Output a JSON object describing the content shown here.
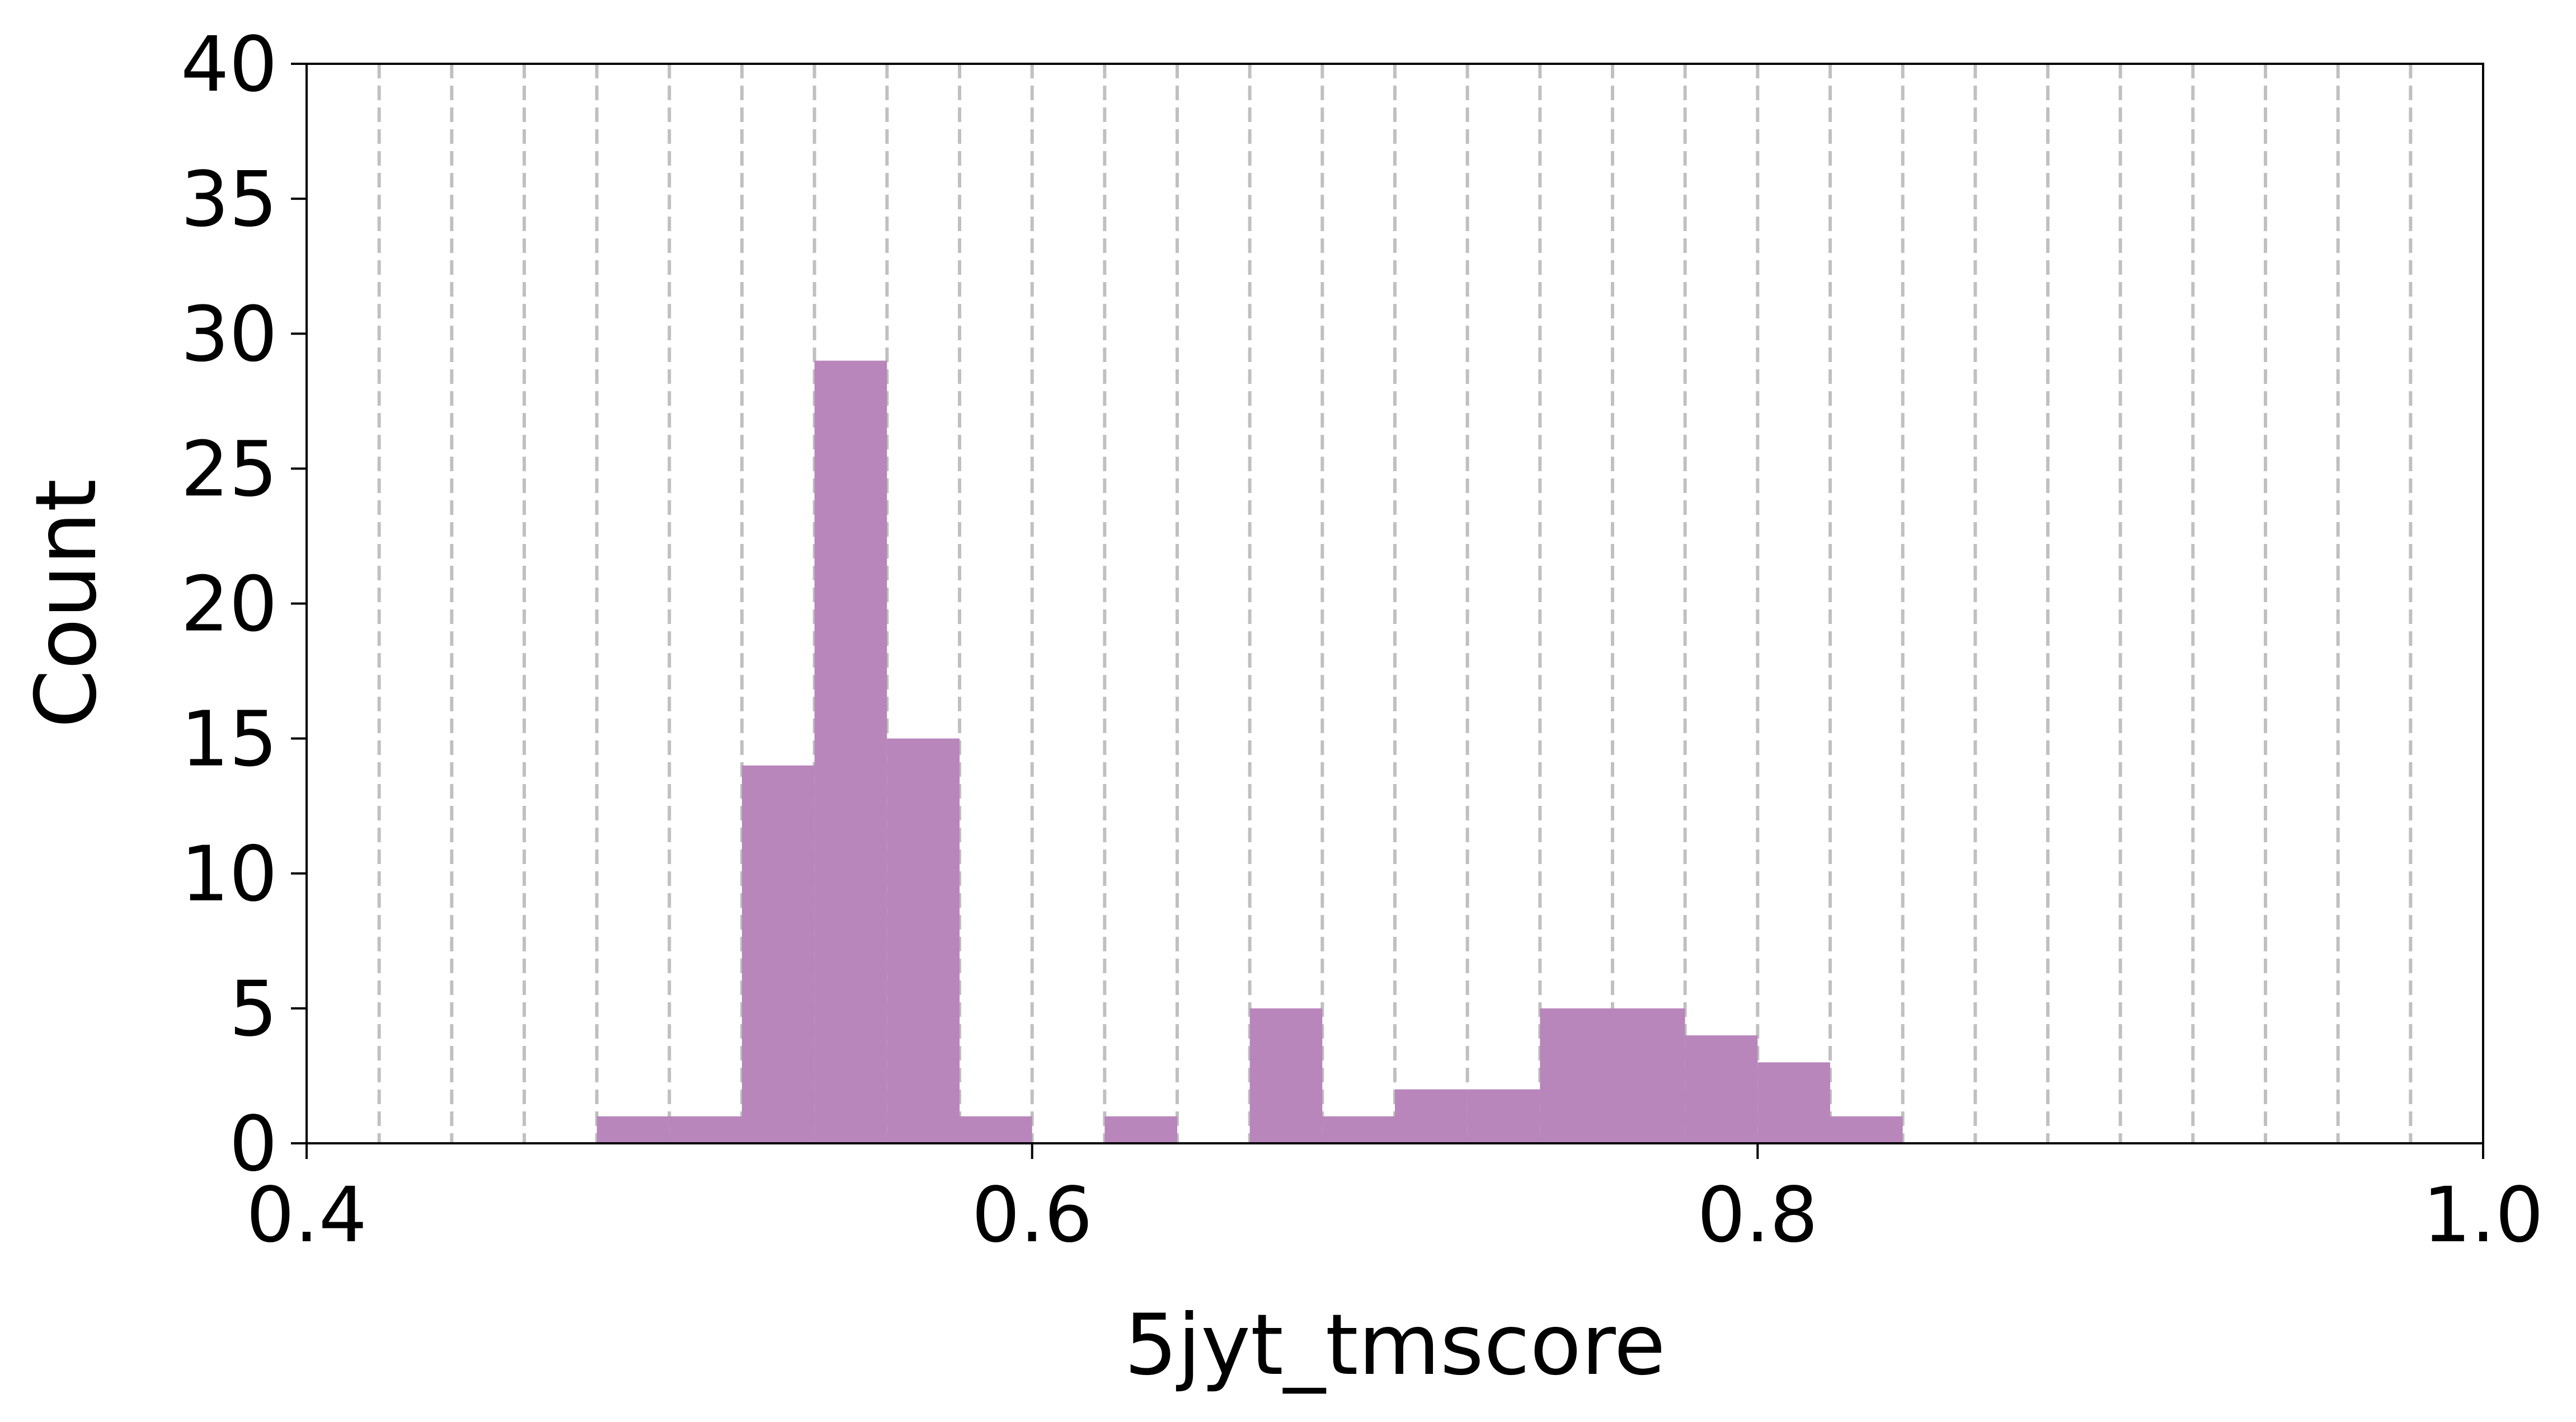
{
  "chart_data": {
    "type": "bar",
    "xlabel": "5jyt_tmscore",
    "ylabel": "Count",
    "xlim": [
      0.4,
      1.0
    ],
    "ylim": [
      0,
      40
    ],
    "bin_width": 0.02,
    "x_ticks": [
      {
        "value": 0.4,
        "label": "0.4"
      },
      {
        "value": 0.6,
        "label": "0.6"
      },
      {
        "value": 0.8,
        "label": "0.8"
      },
      {
        "value": 1.0,
        "label": "1.0"
      }
    ],
    "y_ticks": [
      {
        "value": 0,
        "label": "0"
      },
      {
        "value": 5,
        "label": "5"
      },
      {
        "value": 10,
        "label": "10"
      },
      {
        "value": 15,
        "label": "15"
      },
      {
        "value": 20,
        "label": "20"
      },
      {
        "value": 25,
        "label": "25"
      },
      {
        "value": 30,
        "label": "30"
      },
      {
        "value": 35,
        "label": "35"
      },
      {
        "value": 40,
        "label": "40"
      }
    ],
    "bins": [
      {
        "start": 0.48,
        "count": 1
      },
      {
        "start": 0.5,
        "count": 1
      },
      {
        "start": 0.52,
        "count": 14
      },
      {
        "start": 0.54,
        "count": 29
      },
      {
        "start": 0.56,
        "count": 15
      },
      {
        "start": 0.58,
        "count": 1
      },
      {
        "start": 0.62,
        "count": 1
      },
      {
        "start": 0.66,
        "count": 5
      },
      {
        "start": 0.68,
        "count": 1
      },
      {
        "start": 0.7,
        "count": 2
      },
      {
        "start": 0.72,
        "count": 2
      },
      {
        "start": 0.74,
        "count": 5
      },
      {
        "start": 0.76,
        "count": 5
      },
      {
        "start": 0.78,
        "count": 4
      },
      {
        "start": 0.8,
        "count": 3
      },
      {
        "start": 0.82,
        "count": 1
      }
    ],
    "grid": {
      "axis": "x",
      "step": 0.02,
      "style": "dashed"
    },
    "colors": {
      "bar": "#b886bb",
      "grid": "#c0c0c0",
      "axis": "#000000"
    }
  }
}
